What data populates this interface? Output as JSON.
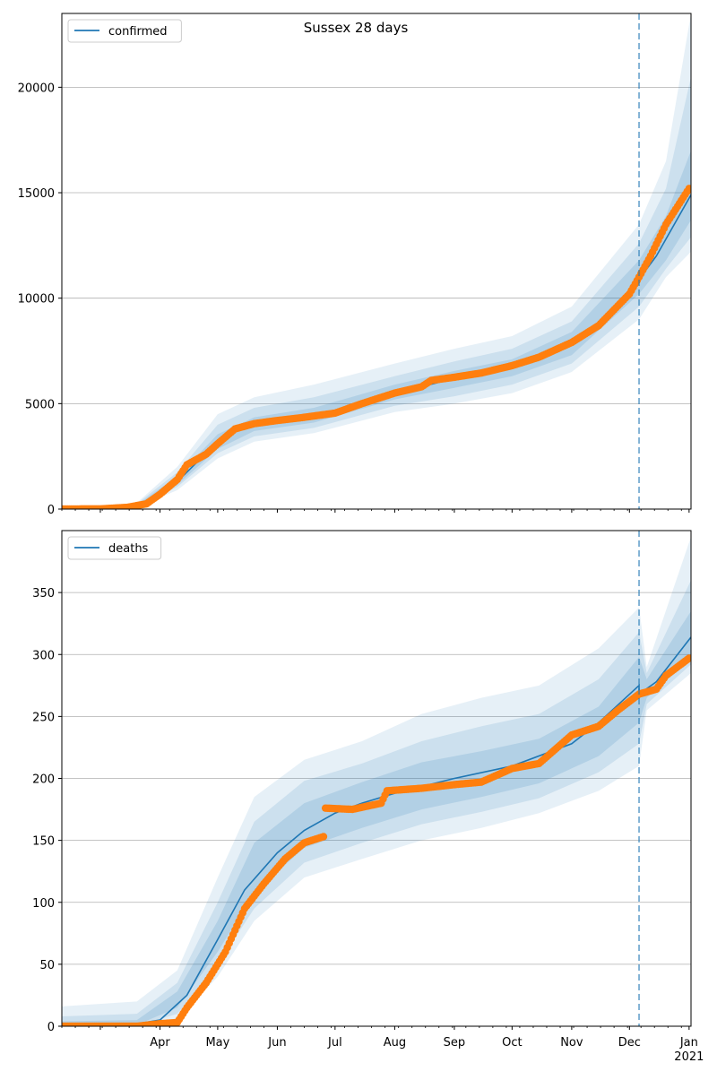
{
  "figure": {
    "title": "Sussex 28 days"
  },
  "colors": {
    "model_line": "#1f77b4",
    "band": "#1f77b4",
    "observed_points": "#ff7f0e",
    "grid": "#b0b0b0",
    "vline": "#1f77b4"
  },
  "chart_data": [
    {
      "type": "line",
      "panel": "top",
      "title": "Sussex 28 days",
      "x_axis": {
        "type": "date",
        "range": [
          "2020-02-10",
          "2021-01-02"
        ],
        "tick_labels": []
      },
      "ylim": [
        0,
        23500
      ],
      "yticks": [
        0,
        5000,
        10000,
        15000,
        20000
      ],
      "grid": "horizontal",
      "legend": {
        "position": "top-left",
        "entries": [
          "confirmed"
        ]
      },
      "forecast_start": "2020-12-06",
      "series": [
        {
          "name": "confirmed",
          "kind": "model median",
          "points": [
            [
              "2020-02-10",
              0
            ],
            [
              "2020-03-01",
              20
            ],
            [
              "2020-03-20",
              150
            ],
            [
              "2020-03-30",
              500
            ],
            [
              "2020-04-10",
              1300
            ],
            [
              "2020-04-20",
              2200
            ],
            [
              "2020-05-01",
              3100
            ],
            [
              "2020-05-10",
              3700
            ],
            [
              "2020-05-20",
              4000
            ],
            [
              "2020-06-01",
              4200
            ],
            [
              "2020-06-20",
              4400
            ],
            [
              "2020-07-01",
              4600
            ],
            [
              "2020-07-15",
              5000
            ],
            [
              "2020-08-01",
              5500
            ],
            [
              "2020-08-15",
              5800
            ],
            [
              "2020-09-01",
              6200
            ],
            [
              "2020-09-15",
              6400
            ],
            [
              "2020-10-01",
              6700
            ],
            [
              "2020-10-15",
              7100
            ],
            [
              "2020-11-01",
              7800
            ],
            [
              "2020-11-15",
              8700
            ],
            [
              "2020-12-01",
              10200
            ],
            [
              "2020-12-06",
              10900
            ],
            [
              "2020-12-15",
              12000
            ],
            [
              "2021-01-02",
              14900
            ]
          ]
        },
        {
          "name": "observed",
          "kind": "points",
          "points": [
            [
              "2020-02-10",
              0
            ],
            [
              "2020-03-01",
              10
            ],
            [
              "2020-03-15",
              80
            ],
            [
              "2020-03-25",
              250
            ],
            [
              "2020-04-01",
              700
            ],
            [
              "2020-04-10",
              1400
            ],
            [
              "2020-04-15",
              2100
            ],
            [
              "2020-04-25",
              2600
            ],
            [
              "2020-05-01",
              3100
            ],
            [
              "2020-05-10",
              3800
            ],
            [
              "2020-05-20",
              4050
            ],
            [
              "2020-06-01",
              4200
            ],
            [
              "2020-06-15",
              4350
            ],
            [
              "2020-07-01",
              4550
            ],
            [
              "2020-07-15",
              5000
            ],
            [
              "2020-08-01",
              5500
            ],
            [
              "2020-08-15",
              5800
            ],
            [
              "2020-08-20",
              6100
            ],
            [
              "2020-09-01",
              6250
            ],
            [
              "2020-09-15",
              6450
            ],
            [
              "2020-10-01",
              6800
            ],
            [
              "2020-10-15",
              7200
            ],
            [
              "2020-11-01",
              7900
            ],
            [
              "2020-11-15",
              8700
            ],
            [
              "2020-12-01",
              10200
            ],
            [
              "2020-12-06",
              11000
            ],
            [
              "2020-12-12",
              12000
            ],
            [
              "2020-12-20",
              13500
            ],
            [
              "2021-01-01",
              15200
            ]
          ]
        }
      ],
      "bands": [
        {
          "level": "outer",
          "points": [
            [
              "2020-02-10",
              0,
              0
            ],
            [
              "2020-03-20",
              80,
              300
            ],
            [
              "2020-04-10",
              900,
              2000
            ],
            [
              "2020-05-01",
              2400,
              4500
            ],
            [
              "2020-05-20",
              3200,
              5300
            ],
            [
              "2020-06-20",
              3600,
              5900
            ],
            [
              "2020-08-01",
              4600,
              6900
            ],
            [
              "2020-09-01",
              5000,
              7600
            ],
            [
              "2020-10-01",
              5500,
              8200
            ],
            [
              "2020-11-01",
              6500,
              9600
            ],
            [
              "2020-12-06",
              9000,
              13500
            ],
            [
              "2020-12-20",
              11000,
              16500
            ],
            [
              "2021-01-02",
              12200,
              23500
            ]
          ]
        },
        {
          "level": "middle",
          "points": [
            [
              "2020-02-10",
              0,
              0
            ],
            [
              "2020-03-20",
              100,
              250
            ],
            [
              "2020-04-10",
              1050,
              1750
            ],
            [
              "2020-05-01",
              2650,
              4000
            ],
            [
              "2020-05-20",
              3450,
              4800
            ],
            [
              "2020-06-20",
              3850,
              5300
            ],
            [
              "2020-08-01",
              4900,
              6300
            ],
            [
              "2020-09-01",
              5350,
              7000
            ],
            [
              "2020-10-01",
              5900,
              7600
            ],
            [
              "2020-11-01",
              6900,
              8900
            ],
            [
              "2020-12-06",
              9600,
              12600
            ],
            [
              "2020-12-20",
              11400,
              15200
            ],
            [
              "2021-01-02",
              12900,
              20500
            ]
          ]
        },
        {
          "level": "inner",
          "points": [
            [
              "2020-02-10",
              0,
              0
            ],
            [
              "2020-03-20",
              120,
              200
            ],
            [
              "2020-04-10",
              1150,
              1550
            ],
            [
              "2020-05-01",
              2850,
              3550
            ],
            [
              "2020-05-20",
              3700,
              4350
            ],
            [
              "2020-06-20",
              4100,
              4800
            ],
            [
              "2020-08-01",
              5200,
              5900
            ],
            [
              "2020-09-01",
              5750,
              6550
            ],
            [
              "2020-10-01",
              6300,
              7100
            ],
            [
              "2020-11-01",
              7300,
              8400
            ],
            [
              "2020-12-06",
              10200,
              11800
            ],
            [
              "2020-12-20",
              11800,
              13900
            ],
            [
              "2021-01-02",
              13700,
              17000
            ]
          ]
        }
      ]
    },
    {
      "type": "line",
      "panel": "bottom",
      "title": "",
      "x_axis": {
        "type": "date",
        "range": [
          "2020-02-10",
          "2021-01-02"
        ],
        "tick_labels": [
          "Apr",
          "May",
          "Jun",
          "Jul",
          "Aug",
          "Sep",
          "Oct",
          "Nov",
          "Dec",
          "Jan"
        ],
        "tick_dates": [
          "2020-04-01",
          "2020-05-01",
          "2020-06-01",
          "2020-07-01",
          "2020-08-01",
          "2020-09-01",
          "2020-10-01",
          "2020-11-01",
          "2020-12-01",
          "2021-01-01"
        ],
        "year_label": "2021"
      },
      "ylim": [
        0,
        400
      ],
      "yticks": [
        0,
        50,
        100,
        150,
        200,
        250,
        300,
        350
      ],
      "grid": "horizontal",
      "legend": {
        "position": "top-left",
        "entries": [
          "deaths"
        ]
      },
      "forecast_start": "2020-12-06",
      "series": [
        {
          "name": "deaths",
          "kind": "model median",
          "points": [
            [
              "2020-02-10",
              0
            ],
            [
              "2020-03-20",
              2
            ],
            [
              "2020-04-01",
              5
            ],
            [
              "2020-04-15",
              25
            ],
            [
              "2020-05-01",
              70
            ],
            [
              "2020-05-15",
              110
            ],
            [
              "2020-06-01",
              140
            ],
            [
              "2020-06-15",
              158
            ],
            [
              "2020-07-01",
              172
            ],
            [
              "2020-07-15",
              180
            ],
            [
              "2020-08-01",
              188
            ],
            [
              "2020-09-01",
              200
            ],
            [
              "2020-10-01",
              210
            ],
            [
              "2020-11-01",
              228
            ],
            [
              "2020-11-15",
              245
            ],
            [
              "2020-12-06",
              275
            ],
            [
              "2020-12-06",
              268
            ],
            [
              "2020-12-15",
              278
            ],
            [
              "2021-01-02",
              314
            ]
          ]
        },
        {
          "name": "observed",
          "kind": "points",
          "points": [
            [
              "2020-02-10",
              0
            ],
            [
              "2020-03-20",
              0
            ],
            [
              "2020-04-01",
              2
            ],
            [
              "2020-04-10",
              3
            ],
            [
              "2020-04-15",
              15
            ],
            [
              "2020-04-25",
              35
            ],
            [
              "2020-05-05",
              60
            ],
            [
              "2020-05-15",
              95
            ],
            [
              "2020-05-25",
              115
            ],
            [
              "2020-06-05",
              135
            ],
            [
              "2020-06-15",
              148
            ],
            [
              "2020-06-25",
              153
            ],
            [
              "2020-06-26",
              176
            ],
            [
              "2020-07-10",
              175
            ],
            [
              "2020-07-25",
              180
            ],
            [
              "2020-07-28",
              190
            ],
            [
              "2020-08-15",
              192
            ],
            [
              "2020-09-01",
              195
            ],
            [
              "2020-09-15",
              197
            ],
            [
              "2020-10-01",
              208
            ],
            [
              "2020-10-15",
              212
            ],
            [
              "2020-11-01",
              235
            ],
            [
              "2020-11-15",
              242
            ],
            [
              "2020-11-25",
              255
            ],
            [
              "2020-12-06",
              268
            ],
            [
              "2020-12-15",
              272
            ],
            [
              "2020-12-20",
              283
            ],
            [
              "2021-01-01",
              297
            ]
          ]
        }
      ],
      "bands": [
        {
          "level": "outer",
          "points": [
            [
              "2020-02-10",
              0,
              16
            ],
            [
              "2020-03-20",
              0,
              20
            ],
            [
              "2020-04-10",
              5,
              45
            ],
            [
              "2020-05-01",
              40,
              120
            ],
            [
              "2020-05-20",
              85,
              185
            ],
            [
              "2020-06-15",
              120,
              215
            ],
            [
              "2020-07-15",
              135,
              230
            ],
            [
              "2020-08-15",
              150,
              252
            ],
            [
              "2020-09-15",
              160,
              265
            ],
            [
              "2020-10-15",
              172,
              275
            ],
            [
              "2020-11-15",
              190,
              305
            ],
            [
              "2020-12-06",
              210,
              338
            ],
            [
              "2020-12-10",
              255,
              290
            ],
            [
              "2021-01-02",
              285,
              395
            ]
          ]
        },
        {
          "level": "middle",
          "points": [
            [
              "2020-02-10",
              0,
              8
            ],
            [
              "2020-03-20",
              0,
              10
            ],
            [
              "2020-04-10",
              10,
              35
            ],
            [
              "2020-05-01",
              50,
              100
            ],
            [
              "2020-05-20",
              95,
              165
            ],
            [
              "2020-06-15",
              132,
              198
            ],
            [
              "2020-07-15",
              148,
              212
            ],
            [
              "2020-08-15",
              163,
              230
            ],
            [
              "2020-09-15",
              173,
              242
            ],
            [
              "2020-10-15",
              184,
              252
            ],
            [
              "2020-11-15",
              205,
              280
            ],
            [
              "2020-12-06",
              228,
              318
            ],
            [
              "2020-12-10",
              260,
              285
            ],
            [
              "2021-01-02",
              292,
              360
            ]
          ]
        },
        {
          "level": "inner",
          "points": [
            [
              "2020-02-10",
              0,
              4
            ],
            [
              "2020-03-20",
              1,
              5
            ],
            [
              "2020-04-10",
              15,
              28
            ],
            [
              "2020-05-01",
              60,
              85
            ],
            [
              "2020-05-20",
              108,
              148
            ],
            [
              "2020-06-15",
              144,
              180
            ],
            [
              "2020-07-15",
              160,
              197
            ],
            [
              "2020-08-15",
              175,
              213
            ],
            [
              "2020-09-15",
              185,
              222
            ],
            [
              "2020-10-15",
              196,
              232
            ],
            [
              "2020-11-15",
              218,
              258
            ],
            [
              "2020-12-06",
              245,
              298
            ],
            [
              "2020-12-10",
              265,
              280
            ],
            [
              "2021-01-02",
              300,
              335
            ]
          ]
        }
      ]
    }
  ]
}
